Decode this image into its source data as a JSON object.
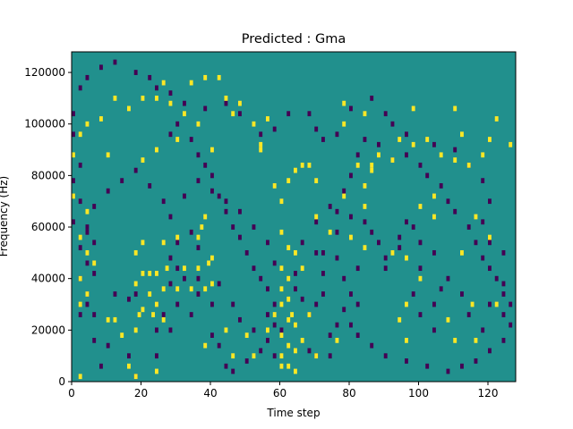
{
  "chart_data": {
    "type": "heatmap",
    "title": "Predicted : Gma",
    "xlabel": "Time step",
    "ylabel": "Frequency (Hz)",
    "xlim": [
      0,
      128
    ],
    "ylim": [
      0,
      128000
    ],
    "x_ticks": [
      0,
      20,
      40,
      60,
      80,
      100,
      120
    ],
    "y_ticks": [
      0,
      20000,
      40000,
      60000,
      80000,
      100000,
      120000
    ],
    "grid": false,
    "colormap": "viridis",
    "n_time_steps": 128,
    "n_frequency_bins": 128,
    "colors": {
      "background": "#21908d",
      "high": "#fde725",
      "low": "#440154"
    },
    "cells_high": [
      [
        2,
        2000
      ],
      [
        18,
        2000
      ],
      [
        14,
        18000
      ],
      [
        44,
        20000
      ],
      [
        50,
        18000
      ],
      [
        56,
        20000
      ],
      [
        58,
        26000
      ],
      [
        63,
        26000
      ],
      [
        19,
        26000
      ],
      [
        23,
        26000
      ],
      [
        24,
        30000
      ],
      [
        26,
        36000
      ],
      [
        30,
        36000
      ],
      [
        34,
        36000
      ],
      [
        38,
        36000
      ],
      [
        40,
        38000
      ],
      [
        20,
        42000
      ],
      [
        22,
        42000
      ],
      [
        24,
        42000
      ],
      [
        27,
        44000
      ],
      [
        32,
        44000
      ],
      [
        36,
        44000
      ],
      [
        39,
        46000
      ],
      [
        40,
        48000
      ],
      [
        18,
        38000
      ],
      [
        18,
        50000
      ],
      [
        20,
        54000
      ],
      [
        26,
        54000
      ],
      [
        30,
        56000
      ],
      [
        36,
        56000
      ],
      [
        37,
        60000
      ],
      [
        38,
        64000
      ],
      [
        10,
        24000
      ],
      [
        12,
        24000
      ],
      [
        18,
        20000
      ],
      [
        38,
        14000
      ],
      [
        46,
        10000
      ],
      [
        52,
        10000
      ],
      [
        60,
        6000
      ],
      [
        70,
        10000
      ],
      [
        76,
        16000
      ],
      [
        96,
        16000
      ],
      [
        110,
        16000
      ],
      [
        116,
        16000
      ],
      [
        115,
        30000
      ],
      [
        122,
        30000
      ],
      [
        108,
        24000
      ],
      [
        96,
        30000
      ],
      [
        94,
        24000
      ],
      [
        112,
        50000
      ],
      [
        120,
        56000
      ],
      [
        100,
        40000
      ],
      [
        96,
        48000
      ],
      [
        92,
        50000
      ],
      [
        84,
        52000
      ],
      [
        80,
        56000
      ],
      [
        74,
        58000
      ],
      [
        70,
        64000
      ],
      [
        70,
        78000
      ],
      [
        66,
        84000
      ],
      [
        68,
        84000
      ],
      [
        78,
        72000
      ],
      [
        84,
        68000
      ],
      [
        84,
        76000
      ],
      [
        86,
        82000
      ],
      [
        86,
        84000
      ],
      [
        92,
        86000
      ],
      [
        100,
        68000
      ],
      [
        104,
        72000
      ],
      [
        104,
        64000
      ],
      [
        106,
        88000
      ],
      [
        110,
        86000
      ],
      [
        114,
        84000
      ],
      [
        118,
        88000
      ],
      [
        120,
        94000
      ],
      [
        112,
        96000
      ],
      [
        98,
        106000
      ],
      [
        84,
        104000
      ],
      [
        78,
        100000
      ],
      [
        78,
        108000
      ],
      [
        56,
        102000
      ],
      [
        52,
        100000
      ],
      [
        48,
        108000
      ],
      [
        44,
        110000
      ],
      [
        46,
        104000
      ],
      [
        36,
        100000
      ],
      [
        32,
        104000
      ],
      [
        26,
        116000
      ],
      [
        24,
        110000
      ],
      [
        28,
        108000
      ],
      [
        34,
        116000
      ],
      [
        38,
        118000
      ],
      [
        42,
        118000
      ],
      [
        20,
        110000
      ],
      [
        16,
        106000
      ],
      [
        12,
        110000
      ],
      [
        8,
        102000
      ],
      [
        4,
        100000
      ],
      [
        2,
        96000
      ],
      [
        0,
        88000
      ],
      [
        10,
        88000
      ],
      [
        20,
        86000
      ],
      [
        24,
        90000
      ],
      [
        30,
        94000
      ],
      [
        40,
        90000
      ],
      [
        54,
        90000
      ],
      [
        58,
        76000
      ],
      [
        62,
        78000
      ],
      [
        64,
        82000
      ],
      [
        60,
        70000
      ],
      [
        60,
        58000
      ],
      [
        62,
        52000
      ],
      [
        64,
        50000
      ],
      [
        66,
        44000
      ],
      [
        60,
        44000
      ],
      [
        60,
        36000
      ],
      [
        62,
        32000
      ],
      [
        60,
        30000
      ],
      [
        62,
        24000
      ],
      [
        64,
        22000
      ],
      [
        68,
        26000
      ],
      [
        60,
        18000
      ],
      [
        62,
        14000
      ],
      [
        64,
        12000
      ],
      [
        66,
        16000
      ],
      [
        60,
        10000
      ],
      [
        62,
        6000
      ],
      [
        64,
        4000
      ],
      [
        82,
        84000
      ],
      [
        88,
        88000
      ],
      [
        94,
        94000
      ],
      [
        98,
        92000
      ],
      [
        102,
        94000
      ],
      [
        116,
        64000
      ],
      [
        122,
        102000
      ],
      [
        126,
        92000
      ],
      [
        6,
        46000
      ],
      [
        4,
        34000
      ],
      [
        2,
        30000
      ],
      [
        2,
        40000
      ],
      [
        4,
        50000
      ],
      [
        2,
        56000
      ],
      [
        0,
        72000
      ],
      [
        4,
        66000
      ],
      [
        54,
        92000
      ],
      [
        110,
        106000
      ],
      [
        26,
        24000
      ],
      [
        22,
        34000
      ],
      [
        20,
        28000
      ],
      [
        16,
        6000
      ],
      [
        24,
        4000
      ],
      [
        62,
        40000
      ]
    ],
    "cells_low": [
      [
        18,
        2000
      ],
      [
        16,
        10000
      ],
      [
        24,
        10000
      ],
      [
        24,
        20000
      ],
      [
        28,
        20000
      ],
      [
        34,
        26000
      ],
      [
        36,
        34000
      ],
      [
        40,
        30000
      ],
      [
        26,
        26000
      ],
      [
        18,
        34000
      ],
      [
        6,
        26000
      ],
      [
        4,
        30000
      ],
      [
        2,
        26000
      ],
      [
        4,
        34000
      ],
      [
        6,
        42000
      ],
      [
        4,
        46000
      ],
      [
        2,
        40000
      ],
      [
        6,
        54000
      ],
      [
        4,
        58000
      ],
      [
        12,
        34000
      ],
      [
        16,
        32000
      ],
      [
        8,
        6000
      ],
      [
        10,
        14000
      ],
      [
        6,
        16000
      ],
      [
        24,
        30000
      ],
      [
        30,
        30000
      ],
      [
        28,
        38000
      ],
      [
        28,
        48000
      ],
      [
        30,
        44000
      ],
      [
        32,
        40000
      ],
      [
        36,
        40000
      ],
      [
        36,
        52000
      ],
      [
        30,
        54000
      ],
      [
        34,
        58000
      ],
      [
        42,
        38000
      ],
      [
        46,
        30000
      ],
      [
        48,
        24000
      ],
      [
        52,
        20000
      ],
      [
        56,
        26000
      ],
      [
        58,
        30000
      ],
      [
        64,
        36000
      ],
      [
        66,
        32000
      ],
      [
        68,
        26000
      ],
      [
        70,
        30000
      ],
      [
        72,
        34000
      ],
      [
        68,
        12000
      ],
      [
        70,
        10000
      ],
      [
        74,
        10000
      ],
      [
        74,
        18000
      ],
      [
        76,
        22000
      ],
      [
        80,
        22000
      ],
      [
        78,
        28000
      ],
      [
        80,
        34000
      ],
      [
        82,
        30000
      ],
      [
        78,
        40000
      ],
      [
        82,
        44000
      ],
      [
        76,
        48000
      ],
      [
        72,
        50000
      ],
      [
        76,
        58000
      ],
      [
        76,
        66000
      ],
      [
        80,
        64000
      ],
      [
        84,
        62000
      ],
      [
        86,
        58000
      ],
      [
        88,
        54000
      ],
      [
        90,
        48000
      ],
      [
        90,
        44000
      ],
      [
        94,
        52000
      ],
      [
        94,
        56000
      ],
      [
        96,
        62000
      ],
      [
        98,
        60000
      ],
      [
        100,
        54000
      ],
      [
        104,
        50000
      ],
      [
        100,
        44000
      ],
      [
        98,
        34000
      ],
      [
        100,
        26000
      ],
      [
        104,
        20000
      ],
      [
        104,
        30000
      ],
      [
        106,
        36000
      ],
      [
        108,
        40000
      ],
      [
        112,
        34000
      ],
      [
        114,
        26000
      ],
      [
        118,
        20000
      ],
      [
        120,
        30000
      ],
      [
        124,
        26000
      ],
      [
        124,
        38000
      ],
      [
        124,
        50000
      ],
      [
        120,
        54000
      ],
      [
        118,
        62000
      ],
      [
        120,
        70000
      ],
      [
        118,
        78000
      ],
      [
        114,
        84000
      ],
      [
        110,
        90000
      ],
      [
        104,
        92000
      ],
      [
        96,
        96000
      ],
      [
        92,
        100000
      ],
      [
        90,
        104000
      ],
      [
        86,
        110000
      ],
      [
        80,
        106000
      ],
      [
        76,
        96000
      ],
      [
        72,
        94000
      ],
      [
        70,
        98000
      ],
      [
        68,
        104000
      ],
      [
        62,
        104000
      ],
      [
        58,
        98000
      ],
      [
        54,
        96000
      ],
      [
        48,
        104000
      ],
      [
        44,
        108000
      ],
      [
        38,
        106000
      ],
      [
        32,
        108000
      ],
      [
        28,
        112000
      ],
      [
        24,
        114000
      ],
      [
        22,
        118000
      ],
      [
        18,
        120000
      ],
      [
        12,
        124000
      ],
      [
        8,
        122000
      ],
      [
        4,
        118000
      ],
      [
        2,
        114000
      ],
      [
        0,
        104000
      ],
      [
        0,
        96000
      ],
      [
        2,
        84000
      ],
      [
        0,
        78000
      ],
      [
        2,
        70000
      ],
      [
        0,
        62000
      ],
      [
        4,
        60000
      ],
      [
        2,
        52000
      ],
      [
        6,
        68000
      ],
      [
        10,
        74000
      ],
      [
        14,
        78000
      ],
      [
        18,
        82000
      ],
      [
        22,
        76000
      ],
      [
        26,
        70000
      ],
      [
        28,
        64000
      ],
      [
        32,
        72000
      ],
      [
        36,
        78000
      ],
      [
        40,
        74000
      ],
      [
        44,
        70000
      ],
      [
        48,
        66000
      ],
      [
        52,
        60000
      ],
      [
        56,
        54000
      ],
      [
        58,
        46000
      ],
      [
        64,
        42000
      ],
      [
        66,
        54000
      ],
      [
        70,
        50000
      ],
      [
        72,
        42000
      ],
      [
        70,
        62000
      ],
      [
        74,
        68000
      ],
      [
        78,
        74000
      ],
      [
        80,
        80000
      ],
      [
        82,
        88000
      ],
      [
        84,
        94000
      ],
      [
        88,
        92000
      ],
      [
        92,
        86000
      ],
      [
        96,
        88000
      ],
      [
        100,
        84000
      ],
      [
        102,
        80000
      ],
      [
        106,
        76000
      ],
      [
        108,
        70000
      ],
      [
        110,
        66000
      ],
      [
        114,
        60000
      ],
      [
        116,
        54000
      ],
      [
        118,
        48000
      ],
      [
        120,
        44000
      ],
      [
        122,
        40000
      ],
      [
        124,
        34000
      ],
      [
        126,
        30000
      ],
      [
        126,
        22000
      ],
      [
        124,
        16000
      ],
      [
        120,
        12000
      ],
      [
        116,
        8000
      ],
      [
        112,
        6000
      ],
      [
        108,
        4000
      ],
      [
        102,
        6000
      ],
      [
        96,
        8000
      ],
      [
        90,
        10000
      ],
      [
        86,
        14000
      ],
      [
        82,
        18000
      ],
      [
        28,
        96000
      ],
      [
        30,
        100000
      ],
      [
        34,
        94000
      ],
      [
        36,
        88000
      ],
      [
        38,
        84000
      ],
      [
        40,
        80000
      ],
      [
        42,
        72000
      ],
      [
        44,
        66000
      ],
      [
        46,
        60000
      ],
      [
        48,
        56000
      ],
      [
        50,
        50000
      ],
      [
        52,
        44000
      ],
      [
        54,
        40000
      ],
      [
        56,
        36000
      ],
      [
        58,
        22000
      ],
      [
        60,
        20000
      ],
      [
        40,
        18000
      ],
      [
        42,
        14000
      ],
      [
        44,
        6000
      ],
      [
        46,
        4000
      ],
      [
        50,
        8000
      ],
      [
        54,
        12000
      ],
      [
        56,
        16000
      ],
      [
        58,
        10000
      ]
    ]
  }
}
